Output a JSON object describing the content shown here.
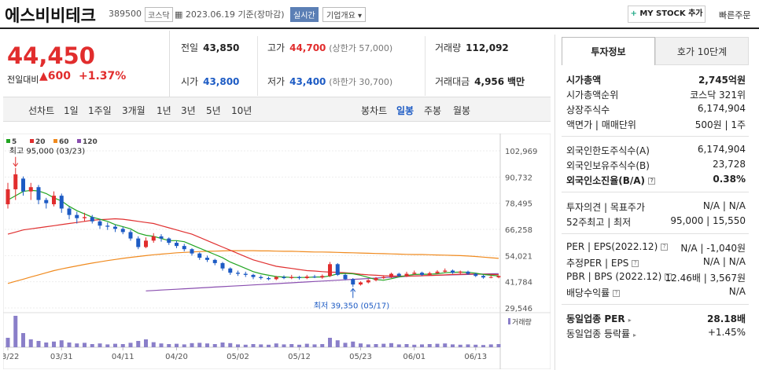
{
  "header": {
    "name": "에스비비테크",
    "code": "389500",
    "market": "코스닥",
    "date": "2023.06.19 기준(장마감)",
    "realtime": "실시간",
    "overview": "기업개요 ▾",
    "mystock": "MY STOCK 추가",
    "quick_order": "빠른주문"
  },
  "price": {
    "current": "44,450",
    "change_label": "전일대비",
    "change": "▲600",
    "percent": "+1.37%"
  },
  "quote": {
    "prev_label": "전일",
    "prev": "43,850",
    "high_label": "고가",
    "high": "44,700",
    "upper": "(상한가 57,000)",
    "vol_label": "거래량",
    "vol": "112,092",
    "open_label": "시가",
    "open": "43,800",
    "low_label": "저가",
    "low": "43,400",
    "lower": "(하한가 30,700)",
    "amt_label": "거래대금",
    "amt": "4,956",
    "amt_unit": "백만"
  },
  "toolbar": {
    "line_chart": "선차트",
    "periods": [
      "1일",
      "1주일",
      "3개월",
      "1년",
      "3년",
      "5년",
      "10년"
    ],
    "candle_chart": "봉차트",
    "candle_periods": [
      "일봉",
      "주봉",
      "월봉"
    ]
  },
  "chart_data": {
    "type": "candlestick",
    "legend": [
      "5",
      "20",
      "60",
      "120"
    ],
    "legend_colors": [
      "#22a522",
      "#e03030",
      "#f08a1e",
      "#8a4fb0"
    ],
    "yticks": [
      "102,969",
      "90,732",
      "78,495",
      "66,258",
      "54,021",
      "41,784",
      "29,546"
    ],
    "ylim": [
      29546,
      102969
    ],
    "xticks": [
      "03/22",
      "03/31",
      "04/11",
      "04/20",
      "05/02",
      "05/12",
      "05/23",
      "06/01",
      "06/13"
    ],
    "high_annotation": "최고 95,000 (03/23)",
    "low_annotation": "최저 39,350 (05/17)",
    "volume_label": "거래량",
    "candles": [
      [
        78000,
        85000,
        88000,
        76000
      ],
      [
        85000,
        92000,
        95000,
        80000
      ],
      [
        90000,
        84000,
        91000,
        82000
      ],
      [
        84000,
        86000,
        88000,
        80000
      ],
      [
        86000,
        80000,
        87000,
        78000
      ],
      [
        80000,
        78500,
        81000,
        76000
      ],
      [
        78000,
        82000,
        84000,
        77000
      ],
      [
        82000,
        76000,
        83000,
        74000
      ],
      [
        76000,
        73000,
        77000,
        71000
      ],
      [
        73000,
        71500,
        74500,
        69000
      ],
      [
        71500,
        72000,
        74000,
        70000
      ],
      [
        72000,
        70000,
        73000,
        69000
      ],
      [
        70000,
        68000,
        71000,
        66500
      ],
      [
        68000,
        67500,
        69500,
        66000
      ],
      [
        67500,
        66500,
        68500,
        65000
      ],
      [
        66500,
        65000,
        67500,
        64000
      ],
      [
        65000,
        62000,
        66000,
        61000
      ],
      [
        62000,
        58000,
        63000,
        57000
      ],
      [
        58000,
        61000,
        62500,
        57500
      ],
      [
        61000,
        63000,
        64500,
        60000
      ],
      [
        63000,
        62000,
        64000,
        60500
      ],
      [
        62000,
        60000,
        62500,
        59000
      ],
      [
        60000,
        58500,
        61000,
        57500
      ],
      [
        58500,
        57000,
        59500,
        56000
      ],
      [
        57000,
        55000,
        57500,
        54000
      ],
      [
        55000,
        53000,
        55500,
        52000
      ],
      [
        53000,
        52000,
        54000,
        51000
      ],
      [
        52000,
        50500,
        52500,
        49500
      ],
      [
        50500,
        48000,
        51000,
        47000
      ],
      [
        48000,
        46000,
        48500,
        45000
      ],
      [
        46000,
        45500,
        47000,
        44500
      ],
      [
        45500,
        45000,
        46500,
        44000
      ],
      [
        45000,
        44000,
        45500,
        43000
      ],
      [
        44000,
        43500,
        44800,
        42800
      ],
      [
        43500,
        43000,
        44200,
        42500
      ],
      [
        43000,
        44000,
        44500,
        42500
      ],
      [
        44000,
        43500,
        44800,
        43000
      ],
      [
        43500,
        44000,
        45000,
        43000
      ],
      [
        44000,
        43500,
        44500,
        42800
      ],
      [
        43500,
        44200,
        45000,
        43000
      ],
      [
        44200,
        43800,
        45000,
        43500
      ],
      [
        43800,
        44500,
        45200,
        43200
      ],
      [
        44500,
        50000,
        51000,
        44000
      ],
      [
        50000,
        45000,
        50500,
        44500
      ],
      [
        45000,
        43000,
        45500,
        42500
      ],
      [
        43000,
        40500,
        43500,
        39350
      ],
      [
        40500,
        41500,
        42000,
        40000
      ],
      [
        41500,
        42500,
        43000,
        41000
      ],
      [
        42500,
        43500,
        44000,
        42000
      ],
      [
        43500,
        44000,
        44800,
        43000
      ],
      [
        44000,
        45500,
        46000,
        43500
      ],
      [
        45500,
        44500,
        46000,
        44000
      ],
      [
        44500,
        45500,
        46500,
        44000
      ],
      [
        45500,
        46000,
        47000,
        45000
      ],
      [
        46000,
        45000,
        46500,
        44500
      ],
      [
        45000,
        45800,
        46500,
        44800
      ],
      [
        45800,
        46500,
        47200,
        45500
      ],
      [
        46500,
        47000,
        48000,
        46000
      ],
      [
        47000,
        46000,
        47500,
        45500
      ],
      [
        46000,
        46500,
        47000,
        45500
      ],
      [
        46500,
        45500,
        47000,
        45000
      ],
      [
        45500,
        44500,
        46000,
        44000
      ],
      [
        44500,
        43800,
        45000,
        43200
      ],
      [
        43800,
        44000,
        44800,
        43400
      ],
      [
        43850,
        44450,
        44700,
        43400
      ]
    ],
    "ma5": [
      80000,
      82000,
      84000,
      84500,
      84200,
      83000,
      81000,
      79500,
      77000,
      75000,
      73500,
      72000,
      71000,
      70000,
      68500,
      67500,
      66500,
      64500,
      63500,
      63000,
      62000,
      61000,
      61000,
      60500,
      59000,
      57500,
      56000,
      54500,
      53000,
      51000,
      49500,
      48000,
      46500,
      45500,
      44800,
      44200,
      44000,
      43800,
      43800,
      43800,
      44000,
      44000,
      44500,
      45500,
      45700,
      45500,
      44800,
      43800,
      42800,
      42500,
      43200,
      44000,
      44700,
      45200,
      45300,
      45300,
      45500,
      46000,
      46200,
      46300,
      46200,
      45800,
      45200,
      44800,
      44500
    ],
    "ma20": [
      64000,
      65000,
      66000,
      66500,
      67000,
      67500,
      68000,
      68500,
      69000,
      69500,
      70000,
      70500,
      70800,
      71000,
      71200,
      71000,
      70500,
      70000,
      69500,
      69000,
      68000,
      67000,
      66000,
      65000,
      64000,
      62500,
      61000,
      59500,
      58000,
      56500,
      55000,
      53500,
      52000,
      51000,
      50000,
      49000,
      48500,
      48000,
      47500,
      47000,
      46800,
      46500,
      46300,
      46200,
      46000,
      45700,
      45300,
      45000,
      44800,
      44600,
      44500,
      44400,
      44400,
      44500,
      44600,
      44700,
      44800,
      45000,
      45200,
      45300,
      45400,
      45400,
      45300,
      45200,
      45100
    ],
    "ma60": [
      41000,
      42000,
      43000,
      44000,
      45000,
      46000,
      47000,
      47800,
      48500,
      49200,
      49900,
      50500,
      51100,
      51700,
      52200,
      52700,
      53200,
      53600,
      54000,
      54400,
      54700,
      55000,
      55300,
      55500,
      55700,
      55900,
      56000,
      56100,
      56200,
      56300,
      56300,
      56300,
      56300,
      56200,
      56200,
      56100,
      56000,
      56000,
      55900,
      55800,
      55700,
      55700,
      55600,
      55500,
      55400,
      55300,
      55200,
      55100,
      55000,
      54900,
      54800,
      54700,
      54600,
      54500,
      54500,
      54400,
      54300,
      54200,
      54100,
      54000,
      53800,
      53600,
      53300,
      53000,
      52700
    ],
    "ma120": [
      null,
      null,
      null,
      null,
      null,
      null,
      null,
      null,
      null,
      null,
      null,
      null,
      null,
      null,
      null,
      null,
      null,
      null,
      37500,
      37700,
      37900,
      38100,
      38300,
      38500,
      38700,
      38900,
      39100,
      39300,
      39500,
      39700,
      39900,
      40100,
      40300,
      40500,
      40700,
      40900,
      41100,
      41300,
      41500,
      41700,
      41900,
      42100,
      42300,
      42500,
      42700,
      42900,
      43100,
      43300,
      43500,
      43700,
      43900,
      44100,
      44300,
      44500,
      44600,
      44700,
      44800,
      44900,
      45000,
      45100,
      45200,
      45300,
      45400,
      45500,
      45600
    ],
    "volume": [
      30,
      100,
      45,
      25,
      20,
      15,
      18,
      22,
      15,
      12,
      14,
      10,
      12,
      9,
      11,
      10,
      14,
      20,
      25,
      16,
      12,
      10,
      11,
      9,
      13,
      14,
      12,
      10,
      15,
      13,
      9,
      8,
      10,
      9,
      8,
      12,
      9,
      10,
      8,
      11,
      9,
      10,
      30,
      22,
      14,
      18,
      12,
      9,
      10,
      11,
      13,
      9,
      10,
      8,
      9,
      10,
      11,
      12,
      9,
      8,
      9,
      8,
      7,
      9,
      10
    ]
  },
  "sidebar": {
    "tab_info": "투자정보",
    "tab_hoga": "호가 10단계",
    "cap_label": "시가총액",
    "cap_value": "2,745억원",
    "rank_label": "시가총액순위",
    "rank_value": "코스닥 321위",
    "shares_label": "상장주식수",
    "shares_value": "6,174,904",
    "par_label": "액면가 | 매매단위",
    "par_value": "500원 | 1주",
    "foreign_limit_label": "외국인한도주식수(A)",
    "foreign_limit_value": "6,174,904",
    "foreign_hold_label": "외국인보유주식수(B)",
    "foreign_hold_value": "23,728",
    "foreign_rate_label": "외국인소진율(B/A)",
    "foreign_rate_value": "0.38%",
    "opinion_label": "투자의견 | 목표주가",
    "opinion_value": "N/A | N/A",
    "w52_label": "52주최고 | 최저",
    "w52_value": "95,000 | 15,550",
    "per_label": "PER | EPS(2022.12)",
    "per_value": "N/A | -1,040원",
    "eper_label": "추정PER | EPS",
    "eper_value": "N/A | N/A",
    "pbr_label": "PBR | BPS (2022.12)",
    "pbr_value": "12.46배 | 3,567원",
    "div_label": "배당수익률",
    "div_value": "N/A",
    "ind_per_label": "동일업종 PER",
    "ind_per_value": "28.18배",
    "ind_rate_label": "동일업종 등락률",
    "ind_rate_value": "+1.45%"
  }
}
